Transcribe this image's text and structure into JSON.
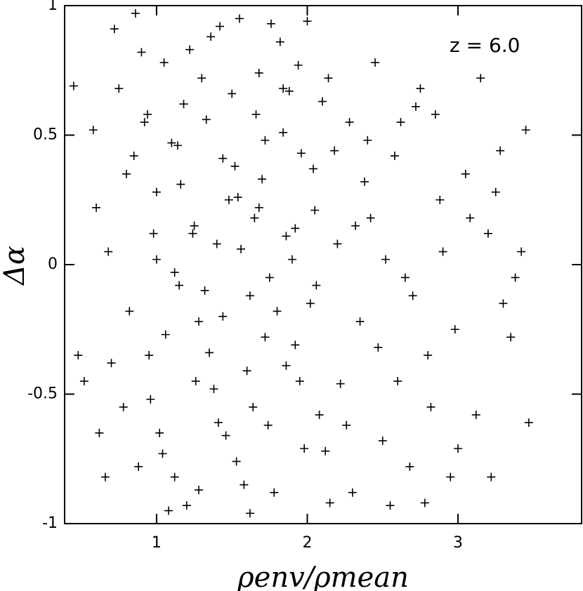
{
  "chart_data": {
    "type": "scatter",
    "xlabel": "ρenv/ρmean",
    "ylabel": "Δα",
    "annotation": "z = 6.0",
    "xlim": [
      0.39,
      3.82
    ],
    "ylim": [
      -1,
      1
    ],
    "xticks": [
      1,
      2,
      3
    ],
    "yticks": [
      -1,
      -0.5,
      0,
      0.5,
      1
    ],
    "color": "#000000",
    "x": [
      0.72,
      0.85,
      0.95,
      1.05,
      1.12,
      1.25,
      1.33,
      1.41,
      1.55,
      1.62,
      1.7,
      1.78,
      1.88,
      1.95,
      2.05,
      2.12,
      0.68,
      0.78,
      0.9,
      1.0,
      1.08,
      1.18,
      1.28,
      1.36,
      1.46,
      1.52,
      1.6,
      1.68,
      1.75,
      1.84,
      1.92,
      2.0,
      2.08,
      2.18,
      0.75,
      0.82,
      0.88,
      0.98,
      1.1,
      1.2,
      1.3,
      1.38,
      1.48,
      1.58,
      1.66,
      1.72,
      1.82,
      1.9,
      1.98,
      2.1,
      0.7,
      0.8,
      0.92,
      1.02,
      1.15,
      1.22,
      1.35,
      1.44,
      1.53,
      1.65,
      1.74,
      1.86,
      1.94,
      2.02,
      2.15,
      2.2,
      0.66,
      0.86,
      0.96,
      1.06,
      1.16,
      1.26,
      1.4,
      1.5,
      1.64,
      1.76,
      1.86,
      2.04,
      2.14,
      2.22,
      2.28,
      2.35,
      2.42,
      2.5,
      2.58,
      2.65,
      2.72,
      2.8,
      2.88,
      2.95,
      3.05,
      3.12,
      3.2,
      3.28,
      3.35,
      3.42,
      3.47,
      2.3,
      2.45,
      2.6,
      2.75,
      2.9,
      3.0,
      3.15,
      3.3,
      3.45,
      2.38,
      2.55,
      2.7,
      2.85,
      0.45,
      0.52,
      0.6,
      0.48,
      0.58,
      0.62,
      2.26,
      2.4,
      2.52,
      2.68,
      2.82,
      3.08,
      3.22,
      3.38,
      2.32,
      2.47,
      2.62,
      2.78,
      2.98,
      3.25,
      1.0,
      1.12,
      1.24,
      1.32,
      1.44,
      1.56,
      1.68,
      1.8,
      1.92,
      2.06,
      0.94,
      1.04,
      1.14,
      1.28,
      1.42,
      1.54,
      1.62,
      1.72,
      1.84,
      1.96
    ],
    "y": [
      0.91,
      0.42,
      -0.35,
      0.78,
      -0.82,
      0.15,
      0.56,
      -0.61,
      0.95,
      -0.12,
      0.33,
      -0.88,
      0.67,
      -0.45,
      0.21,
      -0.72,
      0.05,
      -0.55,
      0.82,
      0.28,
      -0.95,
      0.62,
      -0.22,
      0.88,
      -0.66,
      0.38,
      -0.41,
      0.74,
      -0.05,
      0.51,
      -0.31,
      0.94,
      -0.58,
      0.44,
      0.68,
      -0.18,
      -0.78,
      0.12,
      0.47,
      -0.93,
      0.72,
      -0.48,
      0.25,
      -0.85,
      0.58,
      -0.28,
      0.86,
      0.02,
      -0.71,
      0.63,
      -0.38,
      0.35,
      0.55,
      -0.65,
      -0.08,
      0.83,
      -0.34,
      0.41,
      -0.76,
      0.18,
      -0.62,
      0.11,
      0.77,
      -0.15,
      -0.92,
      0.08,
      -0.82,
      0.97,
      -0.52,
      -0.27,
      0.31,
      -0.45,
      0.08,
      0.66,
      -0.55,
      0.93,
      -0.39,
      0.37,
      0.72,
      -0.46,
      0.55,
      -0.22,
      0.18,
      -0.68,
      0.42,
      -0.05,
      0.61,
      -0.35,
      0.25,
      -0.82,
      0.35,
      -0.58,
      0.12,
      0.44,
      -0.28,
      0.05,
      -0.61,
      -0.88,
      0.78,
      -0.45,
      0.68,
      0.05,
      -0.71,
      0.72,
      -0.15,
      0.52,
      0.32,
      -0.93,
      -0.12,
      0.58,
      0.69,
      -0.45,
      0.22,
      -0.35,
      0.52,
      -0.65,
      -0.62,
      0.48,
      0.02,
      -0.78,
      -0.55,
      0.18,
      -0.82,
      -0.05,
      0.15,
      -0.32,
      0.55,
      -0.92,
      -0.25,
      0.28,
      0.02,
      -0.03,
      0.12,
      -0.1,
      -0.2,
      0.06,
      0.22,
      -0.18,
      0.14,
      -0.08,
      0.58,
      -0.73,
      0.46,
      -0.87,
      0.92,
      0.26,
      -0.96,
      0.48,
      0.68,
      0.43
    ]
  }
}
